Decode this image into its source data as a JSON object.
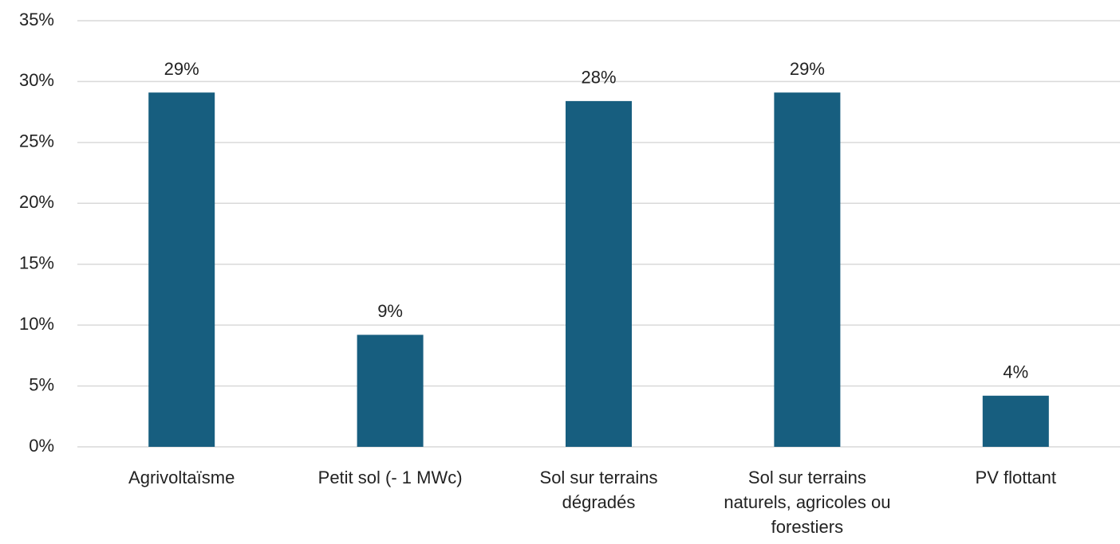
{
  "chart_data": {
    "type": "bar",
    "categories": [
      "Agrivoltaïsme",
      "Petit sol (- 1 MWc)",
      "Sol sur terrains dégradés",
      "Sol sur terrains naturels, agricoles ou forestiers",
      "PV flottant"
    ],
    "values": [
      29.1,
      9.2,
      28.4,
      29.1,
      4.2
    ],
    "value_labels": [
      "29%",
      "9%",
      "28%",
      "29%",
      "4%"
    ],
    "color": "#175e7f",
    "ylim": [
      0,
      35
    ],
    "yticks": [
      {
        "value": 0,
        "label": "0%"
      },
      {
        "value": 5,
        "label": "5%"
      },
      {
        "value": 10,
        "label": "10%"
      },
      {
        "value": 15,
        "label": "15%"
      },
      {
        "value": 20,
        "label": "20%"
      },
      {
        "value": 25,
        "label": "25%"
      },
      {
        "value": 30,
        "label": "30%"
      },
      {
        "value": 35,
        "label": "35%"
      }
    ],
    "grid": true
  }
}
